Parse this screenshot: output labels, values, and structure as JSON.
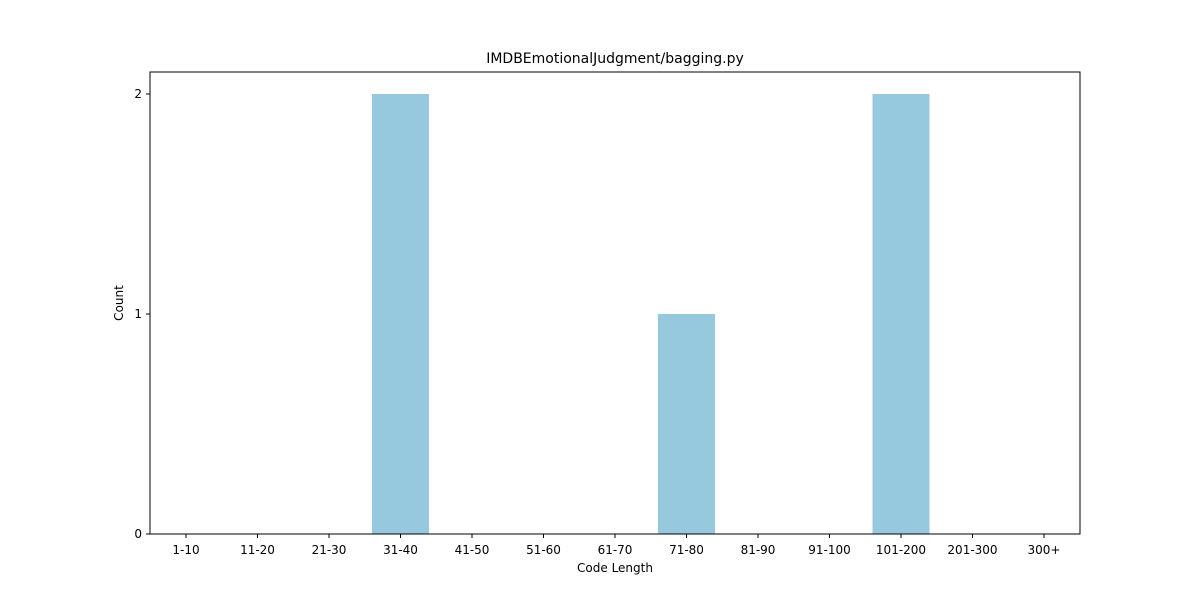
{
  "chart_data": {
    "type": "bar",
    "title": "IMDBEmotionalJudgment/bagging.py",
    "xlabel": "Code Length",
    "ylabel": "Count",
    "categories": [
      "1-10",
      "11-20",
      "21-30",
      "31-40",
      "41-50",
      "51-60",
      "61-70",
      "71-80",
      "81-90",
      "91-100",
      "101-200",
      "201-300",
      "300+"
    ],
    "values": [
      0,
      0,
      0,
      2,
      0,
      0,
      0,
      1,
      0,
      0,
      2,
      0,
      0
    ],
    "ylim": [
      0,
      2.1
    ],
    "yticks": [
      0,
      1,
      2
    ],
    "bar_color": "#96c9de",
    "grid": false
  }
}
